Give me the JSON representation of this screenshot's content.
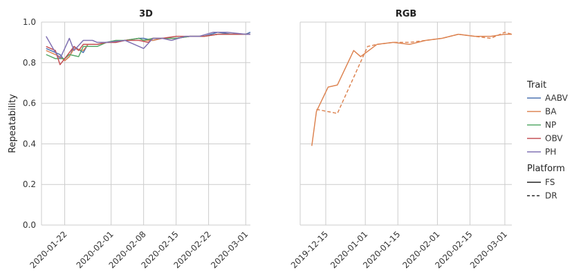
{
  "chart_data": [
    {
      "type": "line",
      "title": "3D",
      "xlabel": "",
      "ylabel": "Repeatability",
      "ylim": [
        0.0,
        1.0
      ],
      "xlim": [
        "2020-01-17",
        "2020-03-02"
      ],
      "y_ticks": [
        "0.0",
        "0.2",
        "0.4",
        "0.6",
        "0.8",
        "1.0"
      ],
      "x_ticks": [
        {
          "date": "2020-01-22",
          "label": "2020-01-22"
        },
        {
          "date": "2020-02-01",
          "label": "2020-02-01"
        },
        {
          "date": "2020-02-08",
          "label": "2020-02-08"
        },
        {
          "date": "2020-02-15",
          "label": "2020-02-15"
        },
        {
          "date": "2020-02-22",
          "label": "2020-02-22"
        },
        {
          "date": "2020-03-01",
          "label": "2020-03-01"
        }
      ],
      "grid": true,
      "series": [
        {
          "name": "AABV",
          "platform": "FS",
          "x": [
            "2020-01-18",
            "2020-01-21",
            "2020-01-22",
            "2020-01-23",
            "2020-01-24",
            "2020-01-26",
            "2020-01-27",
            "2020-01-29",
            "2020-01-31",
            "2020-02-02",
            "2020-02-04",
            "2020-02-07",
            "2020-02-08",
            "2020-02-10",
            "2020-02-12",
            "2020-02-15",
            "2020-02-18",
            "2020-02-21",
            "2020-02-24",
            "2020-02-27",
            "2020-03-01",
            "2020-03-02"
          ],
          "y": [
            0.87,
            0.84,
            0.81,
            0.83,
            0.88,
            0.85,
            0.89,
            0.89,
            0.9,
            0.9,
            0.91,
            0.92,
            0.92,
            0.91,
            0.92,
            0.92,
            0.93,
            0.93,
            0.95,
            0.94,
            0.94,
            0.95
          ]
        },
        {
          "name": "BA",
          "platform": "FS",
          "x": [
            "2020-01-18",
            "2020-01-21",
            "2020-01-22",
            "2020-01-23",
            "2020-01-24",
            "2020-01-26",
            "2020-01-27",
            "2020-01-29",
            "2020-01-31",
            "2020-02-02",
            "2020-02-04",
            "2020-02-07",
            "2020-02-08",
            "2020-02-10",
            "2020-02-12",
            "2020-02-15",
            "2020-02-18",
            "2020-02-21",
            "2020-02-24",
            "2020-02-27",
            "2020-03-01",
            "2020-03-02"
          ],
          "y": [
            0.86,
            0.83,
            0.81,
            0.83,
            0.87,
            0.86,
            0.89,
            0.89,
            0.9,
            0.9,
            0.91,
            0.92,
            0.91,
            0.91,
            0.92,
            0.92,
            0.93,
            0.93,
            0.94,
            0.94,
            0.94,
            0.94
          ]
        },
        {
          "name": "NP",
          "platform": "FS",
          "x": [
            "2020-01-18",
            "2020-01-20",
            "2020-01-22",
            "2020-01-23",
            "2020-01-25",
            "2020-01-26",
            "2020-01-28",
            "2020-01-29",
            "2020-01-31",
            "2020-02-02",
            "2020-02-04",
            "2020-02-07",
            "2020-02-08",
            "2020-02-10",
            "2020-02-12",
            "2020-02-15",
            "2020-02-18",
            "2020-02-21",
            "2020-02-24",
            "2020-02-27",
            "2020-03-01",
            "2020-03-02"
          ],
          "y": [
            0.84,
            0.82,
            0.82,
            0.84,
            0.83,
            0.88,
            0.88,
            0.88,
            0.9,
            0.91,
            0.91,
            0.92,
            0.91,
            0.92,
            0.92,
            0.92,
            0.93,
            0.93,
            0.94,
            0.94,
            0.94,
            0.94
          ]
        },
        {
          "name": "OBV",
          "platform": "FS",
          "x": [
            "2020-01-18",
            "2020-01-20",
            "2020-01-21",
            "2020-01-22",
            "2020-01-24",
            "2020-01-25",
            "2020-01-26",
            "2020-01-29",
            "2020-01-31",
            "2020-02-02",
            "2020-02-04",
            "2020-02-07",
            "2020-02-09",
            "2020-02-10",
            "2020-02-12",
            "2020-02-15",
            "2020-02-18",
            "2020-02-21",
            "2020-02-24",
            "2020-02-27",
            "2020-03-01",
            "2020-03-02"
          ],
          "y": [
            0.88,
            0.86,
            0.79,
            0.82,
            0.88,
            0.86,
            0.89,
            0.89,
            0.9,
            0.9,
            0.91,
            0.91,
            0.9,
            0.92,
            0.92,
            0.93,
            0.93,
            0.93,
            0.94,
            0.94,
            0.94,
            0.94
          ]
        },
        {
          "name": "PH",
          "platform": "FS",
          "x": [
            "2020-01-18",
            "2020-01-20",
            "2020-01-21",
            "2020-01-23",
            "2020-01-24",
            "2020-01-26",
            "2020-01-28",
            "2020-01-29",
            "2020-01-31",
            "2020-02-04",
            "2020-02-06",
            "2020-02-08",
            "2020-02-10",
            "2020-02-12",
            "2020-02-14",
            "2020-02-17",
            "2020-02-20",
            "2020-02-23",
            "2020-02-26",
            "2020-03-01",
            "2020-03-02"
          ],
          "y": [
            0.93,
            0.85,
            0.82,
            0.92,
            0.86,
            0.91,
            0.91,
            0.9,
            0.9,
            0.91,
            0.89,
            0.87,
            0.92,
            0.92,
            0.91,
            0.93,
            0.93,
            0.95,
            0.95,
            0.94,
            0.94
          ]
        }
      ]
    },
    {
      "type": "line",
      "title": "RGB",
      "xlabel": "",
      "ylabel": "",
      "ylim": [
        0.0,
        1.0
      ],
      "xlim": [
        "2019-12-04",
        "2020-03-04"
      ],
      "x_ticks": [
        {
          "date": "2019-12-15",
          "label": "2019-12-15"
        },
        {
          "date": "2020-01-01",
          "label": "2020-01-01"
        },
        {
          "date": "2020-01-15",
          "label": "2020-01-15"
        },
        {
          "date": "2020-02-01",
          "label": "2020-02-01"
        },
        {
          "date": "2020-02-15",
          "label": "2020-02-15"
        },
        {
          "date": "2020-03-01",
          "label": "2020-03-01"
        }
      ],
      "grid": true,
      "series": [
        {
          "name": "BA",
          "platform": "FS",
          "x": [
            "2019-12-09",
            "2019-12-11",
            "2019-12-16",
            "2019-12-20",
            "2019-12-27",
            "2019-12-30",
            "2020-01-06",
            "2020-01-13",
            "2020-01-20",
            "2020-01-27",
            "2020-02-03",
            "2020-02-10",
            "2020-02-17",
            "2020-02-24",
            "2020-03-01",
            "2020-03-04"
          ],
          "y": [
            0.39,
            0.56,
            0.68,
            0.69,
            0.86,
            0.83,
            0.89,
            0.9,
            0.89,
            0.91,
            0.92,
            0.94,
            0.93,
            0.93,
            0.94,
            0.94
          ]
        },
        {
          "name": "BA",
          "platform": "DR",
          "x": [
            "2019-12-11",
            "2019-12-20",
            "2020-01-02",
            "2020-01-06",
            "2020-01-13",
            "2020-01-20",
            "2020-01-27",
            "2020-02-03",
            "2020-02-10",
            "2020-02-17",
            "2020-02-24",
            "2020-03-01",
            "2020-03-04"
          ],
          "y": [
            0.57,
            0.55,
            0.88,
            0.89,
            0.9,
            0.9,
            0.91,
            0.92,
            0.94,
            0.93,
            0.92,
            0.95,
            0.94
          ]
        }
      ]
    }
  ],
  "legend": {
    "trait_title": "Trait",
    "traits": [
      {
        "label": "AABV",
        "color": "#4c72b0"
      },
      {
        "label": "BA",
        "color": "#dd8452"
      },
      {
        "label": "NP",
        "color": "#55a868"
      },
      {
        "label": "OBV",
        "color": "#c44e52"
      },
      {
        "label": "PH",
        "color": "#8172b3"
      }
    ],
    "platform_title": "Platform",
    "platforms": [
      {
        "label": "FS",
        "dash": "solid"
      },
      {
        "label": "DR",
        "dash": "dashed"
      }
    ]
  },
  "colors": {
    "AABV": "#4c72b0",
    "BA": "#dd8452",
    "NP": "#55a868",
    "OBV": "#c44e52",
    "PH": "#8172b3",
    "grid": "#cccccc"
  }
}
